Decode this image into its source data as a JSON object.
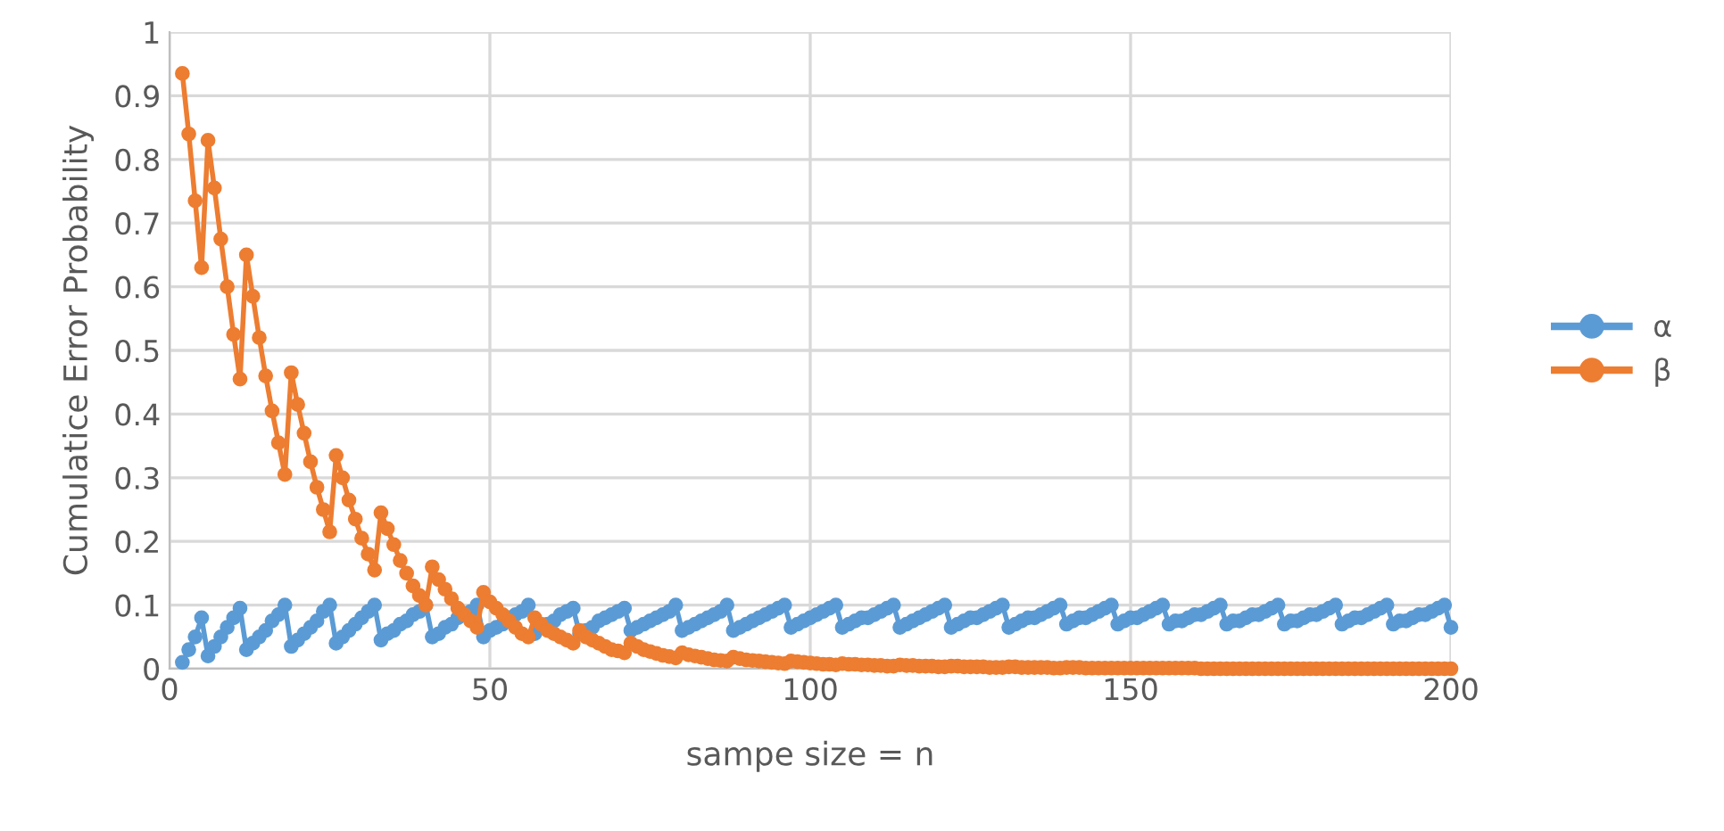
{
  "chart_data": {
    "type": "line",
    "xlabel": "sampe size = n",
    "ylabel": "Cumulatice Error Probability",
    "xlim": [
      0,
      200
    ],
    "ylim": [
      0,
      1
    ],
    "xticks": [
      0,
      50,
      100,
      150,
      200
    ],
    "yticks": [
      0,
      0.1,
      0.2,
      0.3,
      0.4,
      0.5,
      0.6,
      0.7,
      0.8,
      0.9,
      1
    ],
    "grid": true,
    "legend": "right",
    "marker": "circle",
    "line_style": "solid",
    "x": [
      2,
      3,
      4,
      5,
      6,
      7,
      8,
      9,
      10,
      11,
      12,
      13,
      14,
      15,
      16,
      17,
      18,
      19,
      20,
      21,
      22,
      23,
      24,
      25,
      26,
      27,
      28,
      29,
      30,
      31,
      32,
      33,
      34,
      35,
      36,
      37,
      38,
      39,
      40,
      41,
      42,
      43,
      44,
      45,
      46,
      47,
      48,
      49,
      50,
      51,
      52,
      53,
      54,
      55,
      56,
      57,
      58,
      59,
      60,
      61,
      62,
      63,
      64,
      65,
      66,
      67,
      68,
      69,
      70,
      71,
      72,
      73,
      74,
      75,
      76,
      77,
      78,
      79,
      80,
      81,
      82,
      83,
      84,
      85,
      86,
      87,
      88,
      89,
      90,
      91,
      92,
      93,
      94,
      95,
      96,
      97,
      98,
      99,
      100,
      101,
      102,
      103,
      104,
      105,
      106,
      107,
      108,
      109,
      110,
      111,
      112,
      113,
      114,
      115,
      116,
      117,
      118,
      119,
      120,
      121,
      122,
      123,
      124,
      125,
      126,
      127,
      128,
      129,
      130,
      131,
      132,
      133,
      134,
      135,
      136,
      137,
      138,
      139,
      140,
      141,
      142,
      143,
      144,
      145,
      146,
      147,
      148,
      149,
      150,
      151,
      152,
      153,
      154,
      155,
      156,
      157,
      158,
      159,
      160,
      161,
      162,
      163,
      164,
      165,
      166,
      167,
      168,
      169,
      170,
      171,
      172,
      173,
      174,
      175,
      176,
      177,
      178,
      179,
      180,
      181,
      182,
      183,
      184,
      185,
      186,
      187,
      188,
      189,
      190,
      191,
      192,
      193,
      194,
      195,
      196,
      197,
      198,
      199,
      200
    ],
    "series": [
      {
        "name": "α",
        "color": "#5b9bd5",
        "values": [
          0.01,
          0.03,
          0.05,
          0.08,
          0.02,
          0.035,
          0.05,
          0.065,
          0.08,
          0.095,
          0.03,
          0.04,
          0.05,
          0.06,
          0.075,
          0.085,
          0.1,
          0.035,
          0.045,
          0.055,
          0.065,
          0.075,
          0.09,
          0.1,
          0.04,
          0.05,
          0.06,
          0.07,
          0.08,
          0.09,
          0.1,
          0.045,
          0.055,
          0.06,
          0.07,
          0.075,
          0.085,
          0.09,
          0.1,
          0.05,
          0.055,
          0.065,
          0.07,
          0.08,
          0.085,
          0.09,
          0.1,
          0.05,
          0.06,
          0.065,
          0.07,
          0.08,
          0.085,
          0.09,
          0.1,
          0.055,
          0.065,
          0.07,
          0.075,
          0.085,
          0.09,
          0.095,
          0.055,
          0.06,
          0.065,
          0.075,
          0.08,
          0.085,
          0.09,
          0.095,
          0.06,
          0.065,
          0.07,
          0.075,
          0.08,
          0.085,
          0.09,
          0.1,
          0.06,
          0.065,
          0.07,
          0.075,
          0.08,
          0.085,
          0.09,
          0.1,
          0.06,
          0.065,
          0.07,
          0.075,
          0.08,
          0.085,
          0.09,
          0.095,
          0.1,
          0.065,
          0.07,
          0.075,
          0.08,
          0.085,
          0.09,
          0.095,
          0.1,
          0.065,
          0.07,
          0.075,
          0.08,
          0.08,
          0.085,
          0.09,
          0.095,
          0.1,
          0.065,
          0.07,
          0.075,
          0.08,
          0.085,
          0.09,
          0.095,
          0.1,
          0.065,
          0.07,
          0.075,
          0.08,
          0.08,
          0.085,
          0.09,
          0.095,
          0.1,
          0.065,
          0.07,
          0.075,
          0.08,
          0.08,
          0.085,
          0.09,
          0.095,
          0.1,
          0.07,
          0.075,
          0.08,
          0.08,
          0.085,
          0.09,
          0.095,
          0.1,
          0.07,
          0.075,
          0.08,
          0.08,
          0.085,
          0.09,
          0.095,
          0.1,
          0.07,
          0.075,
          0.075,
          0.08,
          0.085,
          0.085,
          0.09,
          0.095,
          0.1,
          0.07,
          0.075,
          0.075,
          0.08,
          0.085,
          0.085,
          0.09,
          0.095,
          0.1,
          0.07,
          0.075,
          0.075,
          0.08,
          0.085,
          0.085,
          0.09,
          0.095,
          0.1,
          0.07,
          0.075,
          0.08,
          0.08,
          0.085,
          0.09,
          0.095,
          0.1,
          0.07,
          0.075,
          0.075,
          0.08,
          0.085,
          0.085,
          0.09,
          0.095,
          0.1,
          0.065
        ]
      },
      {
        "name": "β",
        "color": "#ed7d31",
        "values": [
          0.935,
          0.84,
          0.735,
          0.63,
          0.83,
          0.755,
          0.675,
          0.6,
          0.525,
          0.455,
          0.65,
          0.585,
          0.52,
          0.46,
          0.405,
          0.355,
          0.305,
          0.465,
          0.415,
          0.37,
          0.325,
          0.285,
          0.25,
          0.215,
          0.335,
          0.3,
          0.265,
          0.235,
          0.205,
          0.18,
          0.155,
          0.245,
          0.22,
          0.195,
          0.17,
          0.15,
          0.13,
          0.115,
          0.1,
          0.16,
          0.14,
          0.125,
          0.11,
          0.095,
          0.085,
          0.075,
          0.065,
          0.12,
          0.105,
          0.095,
          0.085,
          0.075,
          0.065,
          0.055,
          0.05,
          0.08,
          0.07,
          0.06,
          0.055,
          0.05,
          0.045,
          0.04,
          0.06,
          0.05,
          0.045,
          0.04,
          0.035,
          0.03,
          0.028,
          0.025,
          0.04,
          0.035,
          0.03,
          0.027,
          0.024,
          0.021,
          0.019,
          0.017,
          0.025,
          0.022,
          0.02,
          0.018,
          0.016,
          0.014,
          0.013,
          0.012,
          0.018,
          0.016,
          0.014,
          0.013,
          0.012,
          0.011,
          0.01,
          0.009,
          0.008,
          0.012,
          0.011,
          0.01,
          0.009,
          0.008,
          0.007,
          0.007,
          0.006,
          0.008,
          0.007,
          0.007,
          0.006,
          0.006,
          0.005,
          0.005,
          0.004,
          0.004,
          0.006,
          0.005,
          0.005,
          0.004,
          0.004,
          0.004,
          0.003,
          0.003,
          0.004,
          0.004,
          0.003,
          0.003,
          0.003,
          0.003,
          0.002,
          0.002,
          0.002,
          0.003,
          0.003,
          0.002,
          0.002,
          0.002,
          0.002,
          0.002,
          0.001,
          0.001,
          0.002,
          0.002,
          0.002,
          0.001,
          0.001,
          0.001,
          0.001,
          0.001,
          0.001,
          0.001,
          0.001,
          0.001,
          0.001,
          0.001,
          0.001,
          0.001,
          0.001,
          0.001,
          0.001,
          0.001,
          0.001,
          0,
          0,
          0,
          0,
          0,
          0,
          0,
          0,
          0,
          0,
          0,
          0,
          0,
          0,
          0,
          0,
          0,
          0,
          0,
          0,
          0,
          0,
          0,
          0,
          0,
          0,
          0,
          0,
          0,
          0,
          0,
          0,
          0,
          0,
          0,
          0,
          0,
          0,
          0,
          0
        ]
      }
    ]
  }
}
